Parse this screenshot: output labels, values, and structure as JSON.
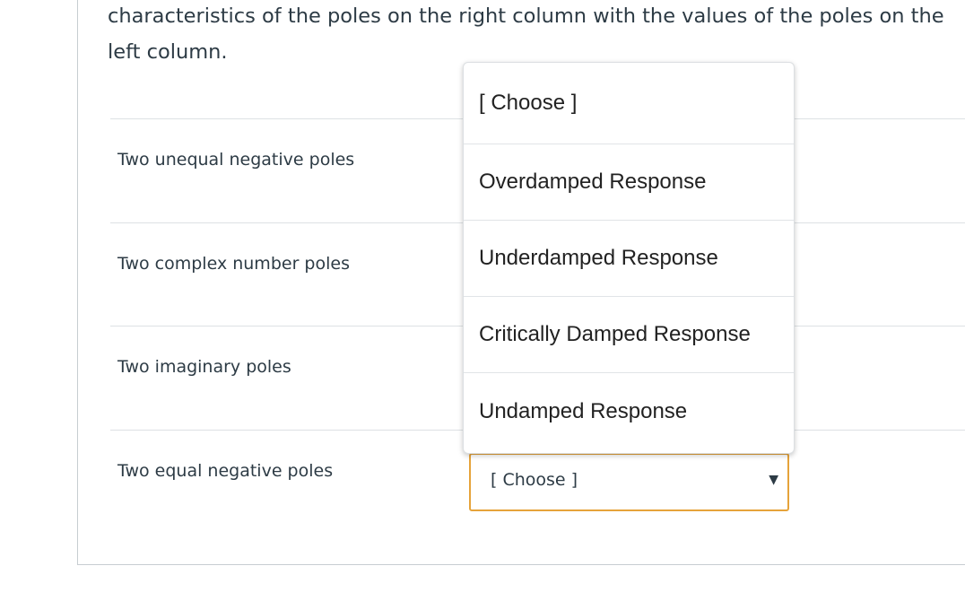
{
  "question": {
    "line1": "characteristics of the poles on the right column with the values of the poles on the",
    "line2": "left column."
  },
  "rows": [
    {
      "label": "Two unequal negative poles"
    },
    {
      "label": "Two complex number poles"
    },
    {
      "label": "Two imaginary poles"
    },
    {
      "label": "Two equal negative poles",
      "select_value": "[ Choose ]"
    }
  ],
  "dropdown": {
    "options": [
      "[ Choose ]",
      "Overdamped Response",
      "Underdamped Response",
      "Critically Damped Response",
      "Undamped Response"
    ]
  },
  "icons": {
    "caret": "caret-down-icon"
  },
  "colors": {
    "focus_border": "#e6a33a",
    "text": "#2d3b45"
  }
}
